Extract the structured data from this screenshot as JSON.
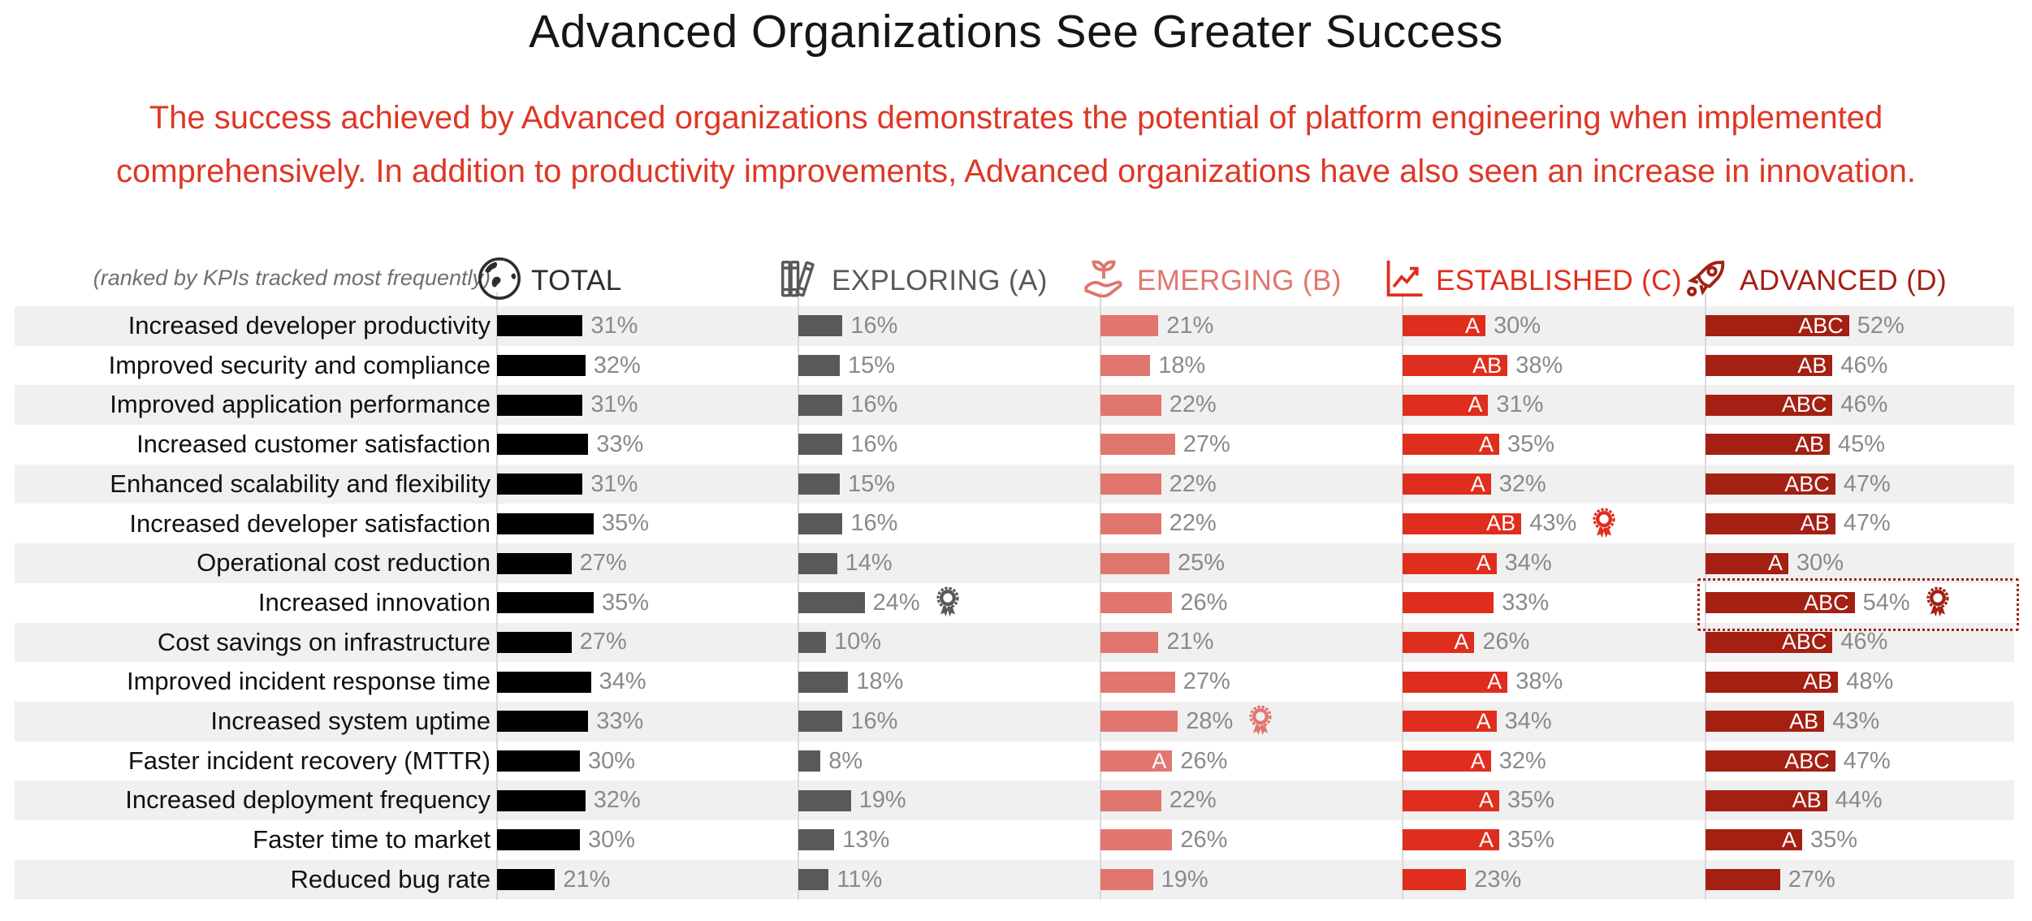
{
  "title": "Advanced Organizations See Greater Success",
  "subtitle": {
    "line1": "The success achieved by Advanced organizations demonstrates the potential of platform engineering when implemented",
    "line2": "comprehensively. In addition to productivity improvements, Advanced organizations have also seen an increase in innovation."
  },
  "rank_note": "(ranked by KPIs tracked most frequently)",
  "colors": {
    "title_text": "#161616",
    "subtitle_text": "#dd3826",
    "band_gray": "#f0f0f0",
    "axis_gray": "#d9d9d9",
    "value_text": "#8a8a8a",
    "bar_letter_text": "#ffffff"
  },
  "columns": [
    {
      "key": "total",
      "label": "TOTAL",
      "icon": "globe-icon",
      "color": "#000000",
      "header_color": "#2d2d2d"
    },
    {
      "key": "exploring",
      "label": "EXPLORING (A)",
      "icon": "books-icon",
      "color": "#58595b",
      "header_color": "#58595b"
    },
    {
      "key": "emerging",
      "label": "EMERGING (B)",
      "icon": "seedling-hand-icon",
      "color": "#e0766e",
      "header_color": "#e0766e"
    },
    {
      "key": "established",
      "label": "ESTABLISHED (C)",
      "icon": "trend-chart-icon",
      "color": "#df2e1d",
      "header_color": "#df2e1d"
    },
    {
      "key": "advanced",
      "label": "ADVANCED (D)",
      "icon": "rocket-icon",
      "color": "#a32013",
      "header_color": "#a32013"
    }
  ],
  "chart_data": {
    "type": "bar",
    "orientation": "horizontal",
    "unit": "%",
    "title": "Advanced Organizations See Greater Success",
    "note": "(ranked by KPIs tracked most frequently)",
    "xlim": [
      0,
      60
    ],
    "grid": false,
    "categories": [
      "Increased developer productivity",
      "Improved security and compliance",
      "Improved application performance",
      "Increased customer satisfaction",
      "Enhanced scalability and flexibility",
      "Increased developer satisfaction",
      "Operational cost reduction",
      "Increased innovation",
      "Cost savings on infrastructure",
      "Improved incident response time",
      "Increased system uptime",
      "Faster incident recovery (MTTR)",
      "Increased deployment frequency",
      "Faster time to market",
      "Reduced bug rate"
    ],
    "series": [
      {
        "name": "TOTAL",
        "values": [
          31,
          32,
          31,
          33,
          31,
          35,
          27,
          35,
          27,
          34,
          33,
          30,
          32,
          30,
          21
        ],
        "letters": [
          "",
          "",
          "",
          "",
          "",
          "",
          "",
          "",
          "",
          "",
          "",
          "",
          "",
          "",
          ""
        ],
        "award_rows": []
      },
      {
        "name": "EXPLORING (A)",
        "values": [
          16,
          15,
          16,
          16,
          15,
          16,
          14,
          24,
          10,
          18,
          16,
          8,
          19,
          13,
          11
        ],
        "letters": [
          "",
          "",
          "",
          "",
          "",
          "",
          "",
          "",
          "",
          "",
          "",
          "",
          "",
          "",
          ""
        ],
        "award_rows": [
          7
        ]
      },
      {
        "name": "EMERGING (B)",
        "values": [
          21,
          18,
          22,
          27,
          22,
          22,
          25,
          26,
          21,
          27,
          28,
          26,
          22,
          26,
          19
        ],
        "letters": [
          "",
          "",
          "",
          "",
          "",
          "",
          "",
          "",
          "",
          "",
          "",
          "A",
          "",
          "",
          ""
        ],
        "award_rows": [
          10
        ]
      },
      {
        "name": "ESTABLISHED (C)",
        "values": [
          30,
          38,
          31,
          35,
          32,
          43,
          34,
          33,
          26,
          38,
          34,
          32,
          35,
          35,
          23
        ],
        "letters": [
          "A",
          "AB",
          "A",
          "A",
          "A",
          "AB",
          "A",
          "",
          "A",
          "A",
          "A",
          "A",
          "A",
          "A",
          ""
        ],
        "award_rows": [
          5
        ]
      },
      {
        "name": "ADVANCED (D)",
        "values": [
          52,
          46,
          46,
          45,
          47,
          47,
          30,
          54,
          46,
          48,
          43,
          47,
          44,
          35,
          27
        ],
        "letters": [
          "ABC",
          "AB",
          "ABC",
          "AB",
          "ABC",
          "AB",
          "A",
          "ABC",
          "ABC",
          "AB",
          "AB",
          "ABC",
          "AB",
          "A",
          ""
        ],
        "award_rows": [
          7
        ],
        "highlight_row": 7
      }
    ]
  }
}
